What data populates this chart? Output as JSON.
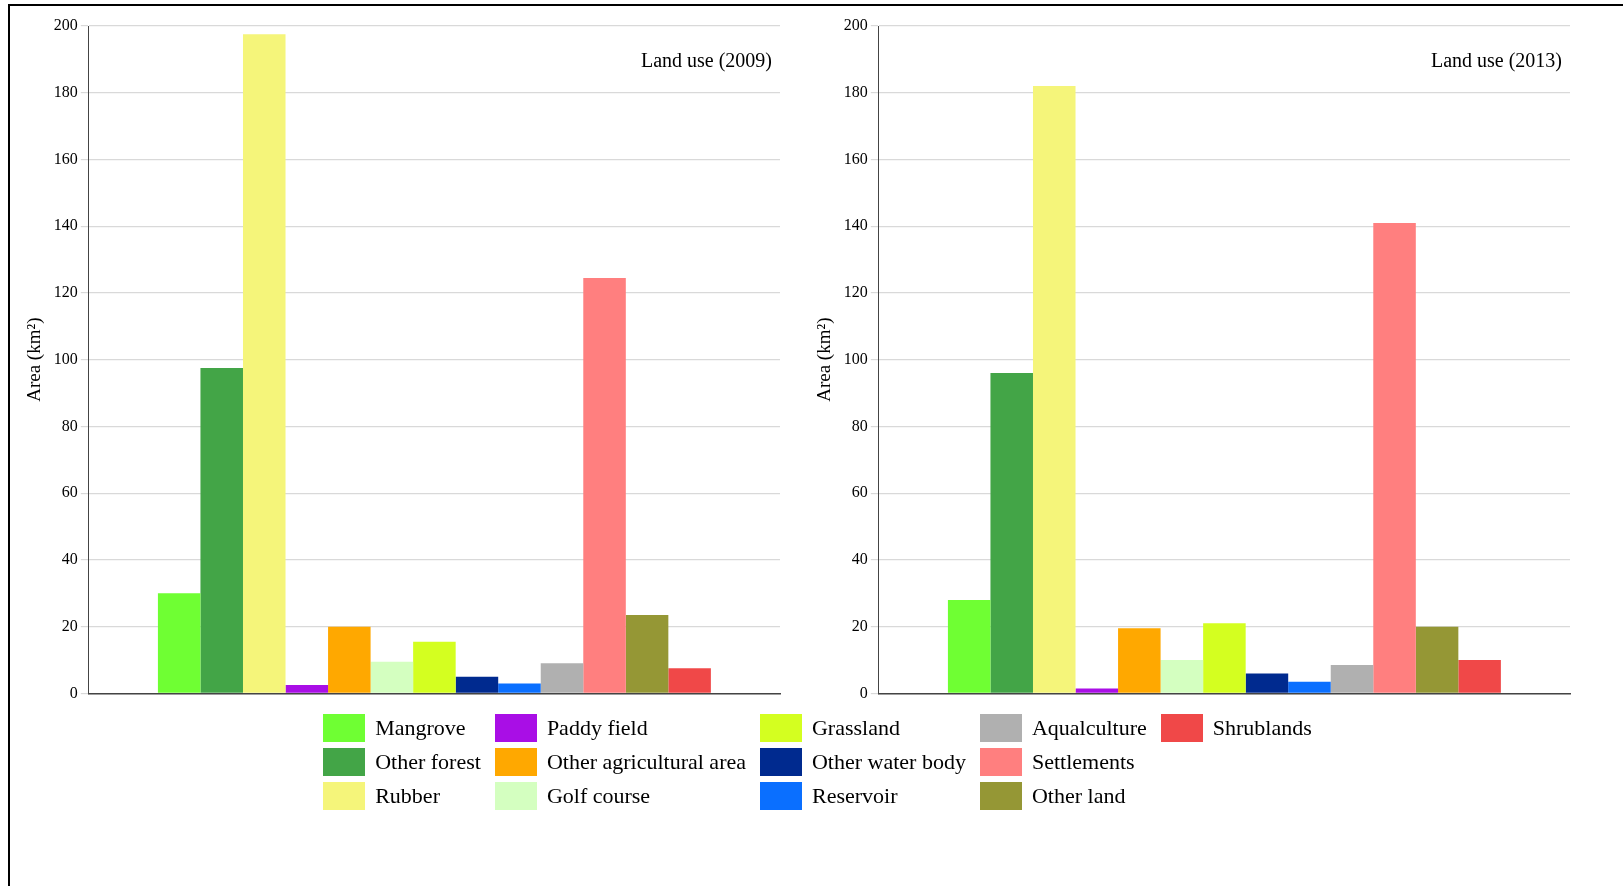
{
  "chart_data": [
    {
      "type": "bar",
      "title": "Land use (2009)",
      "ylabel": "Area (km²)",
      "categories": [
        null
      ],
      "ylim": [
        0,
        200
      ],
      "yticks": [
        0,
        20,
        40,
        60,
        80,
        100,
        120,
        140,
        160,
        180,
        200
      ],
      "grid": "y",
      "legend": "bottom",
      "tick_labels": "y",
      "series": [
        {
          "name": "Mangrove",
          "color": "#6fff33",
          "values": [
            30
          ]
        },
        {
          "name": "Other forest",
          "color": "#43a547",
          "values": [
            97.5
          ]
        },
        {
          "name": "Rubber",
          "color": "#f5f57a",
          "values": [
            197.5
          ]
        },
        {
          "name": "Paddy field",
          "color": "#a90ee6",
          "values": [
            2.5
          ]
        },
        {
          "name": "Other agricultural area",
          "color": "#ffa800",
          "values": [
            20
          ]
        },
        {
          "name": "Golf course",
          "color": "#d4ffc0",
          "values": [
            9.5
          ]
        },
        {
          "name": "Grassland",
          "color": "#d4ff20",
          "values": [
            15.5
          ]
        },
        {
          "name": "Other water body",
          "color": "#002a8f",
          "values": [
            5
          ]
        },
        {
          "name": "Reservoir",
          "color": "#0a6fff",
          "values": [
            3
          ]
        },
        {
          "name": "Aqualculture",
          "color": "#b0b0b0",
          "values": [
            9
          ]
        },
        {
          "name": "Settlements",
          "color": "#ff7f7f",
          "values": [
            124.5
          ]
        },
        {
          "name": "Other land",
          "color": "#959735",
          "values": [
            23.5
          ]
        },
        {
          "name": "Shrublands",
          "color": "#f04848",
          "values": [
            7.5
          ]
        }
      ]
    },
    {
      "type": "bar",
      "title": "Land use (2013)",
      "ylabel": "Area (km²)",
      "categories": [
        null
      ],
      "ylim": [
        0,
        200
      ],
      "yticks": [
        0,
        20,
        40,
        60,
        80,
        100,
        120,
        140,
        160,
        180,
        200
      ],
      "grid": "y",
      "tick_labels": "y",
      "series": [
        {
          "color": "#6fff33",
          "values": [
            28
          ]
        },
        {
          "color": "#43a547",
          "values": [
            96
          ]
        },
        {
          "color": "#f5f57a",
          "values": [
            182
          ]
        },
        {
          "color": "#a90ee6",
          "values": [
            1.5
          ]
        },
        {
          "color": "#ffa800",
          "values": [
            19.5
          ]
        },
        {
          "color": "#d4ffc0",
          "values": [
            10
          ]
        },
        {
          "color": "#d4ff20",
          "values": [
            21
          ]
        },
        {
          "color": "#002a8f",
          "values": [
            6
          ]
        },
        {
          "color": "#0a6fff",
          "values": [
            3.5
          ]
        },
        {
          "color": "#b0b0b0",
          "values": [
            8.5
          ]
        },
        {
          "color": "#ff7f7f",
          "values": [
            141
          ]
        },
        {
          "color": "#959735",
          "values": [
            20
          ]
        },
        {
          "color": "#f04848",
          "values": [
            10
          ]
        }
      ]
    }
  ]
}
